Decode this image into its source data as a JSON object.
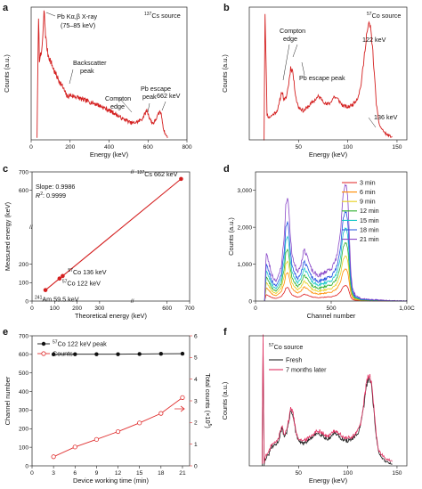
{
  "chart_data": [
    {
      "panel": "a",
      "type": "line",
      "inset_label": "137Cs source",
      "inset_sup": "137",
      "inset_rest": "Cs source",
      "xlabel": "Energy (keV)",
      "ylabel": "Counts (a.u.)",
      "xlim": [
        0,
        800
      ],
      "xticks": [
        0,
        200,
        400,
        600,
        800
      ],
      "color": "#d42020",
      "series": [
        {
          "x": [
            30,
            38,
            42,
            46,
            50,
            55,
            60,
            66,
            75,
            85,
            100,
            120,
            140,
            160,
            175,
            185,
            200,
            230,
            260,
            300,
            340,
            380,
            420,
            450,
            470,
            490,
            510,
            530,
            550,
            570,
            585,
            595,
            600,
            610,
            620,
            630,
            645,
            655,
            662,
            670,
            680,
            690,
            700
          ],
          "y": [
            0.02,
            0.96,
            0.6,
            0.66,
            0.62,
            0.7,
            0.78,
            0.99,
            0.78,
            0.66,
            0.6,
            0.52,
            0.46,
            0.41,
            0.36,
            0.33,
            0.34,
            0.33,
            0.31,
            0.29,
            0.27,
            0.24,
            0.21,
            0.18,
            0.16,
            0.15,
            0.13,
            0.13,
            0.14,
            0.16,
            0.2,
            0.23,
            0.2,
            0.16,
            0.13,
            0.13,
            0.17,
            0.2,
            0.22,
            0.18,
            0.08,
            0.04,
            0.02
          ]
        }
      ],
      "annotations": [
        {
          "line1": "Pb Kα,β X-ray",
          "line2": "(75–85 keV)"
        },
        {
          "line1": "Backscatter",
          "line2": "peak"
        },
        {
          "line1": "Compton",
          "line2": "edge"
        },
        {
          "line1": "Pb escape",
          "line2": "peak"
        },
        {
          "line1": "662 keV",
          "line2": ""
        }
      ]
    },
    {
      "panel": "b",
      "type": "line",
      "inset_label": "57Co source",
      "inset_sup": "57",
      "inset_rest": "Co source",
      "xlabel": "Energy (keV)",
      "ylabel": "Counts (a.u.)",
      "xlim": [
        0,
        160
      ],
      "xticks": [
        50,
        100,
        150
      ],
      "color": "#d42020",
      "series": [
        {
          "x": [
            15,
            16,
            17,
            18,
            19,
            20,
            22,
            25,
            28,
            30,
            32,
            33,
            34,
            35,
            36,
            38,
            40,
            42,
            44,
            46,
            48,
            50,
            52,
            55,
            58,
            62,
            66,
            70,
            74,
            78,
            82,
            86,
            90,
            95,
            100,
            105,
            110,
            113,
            116,
            119,
            121,
            122,
            123,
            125,
            127,
            129,
            131,
            133,
            136,
            138,
            140,
            145
          ],
          "y": [
            0.0,
            0.97,
            0.6,
            0.2,
            0.18,
            0.17,
            0.18,
            0.2,
            0.22,
            0.26,
            0.34,
            0.37,
            0.35,
            0.31,
            0.3,
            0.34,
            0.43,
            0.55,
            0.53,
            0.4,
            0.3,
            0.25,
            0.24,
            0.22,
            0.24,
            0.27,
            0.3,
            0.33,
            0.31,
            0.27,
            0.28,
            0.33,
            0.31,
            0.26,
            0.25,
            0.27,
            0.32,
            0.4,
            0.58,
            0.8,
            0.87,
            0.88,
            0.86,
            0.72,
            0.5,
            0.28,
            0.15,
            0.1,
            0.07,
            0.05,
            0.04,
            0.02
          ]
        }
      ],
      "annotations": [
        {
          "line1": "Compton",
          "line2": "edge"
        },
        {
          "line1": "Pb escape peak",
          "line2": ""
        },
        {
          "line1": "122 keV",
          "line2": ""
        },
        {
          "line1": "136 keV",
          "line2": ""
        }
      ]
    },
    {
      "panel": "c",
      "type": "scatter",
      "xlabel": "Theoretical energy (keV)",
      "ylabel": "Measured energy (keV)",
      "xlim": [
        0,
        700
      ],
      "ylim": [
        0,
        700
      ],
      "xticks": [
        0,
        100,
        200,
        300,
        600,
        700
      ],
      "yticks": [
        0,
        100,
        200,
        600,
        700
      ],
      "slope_text": "Slope: 0.9986",
      "r2_prefix": "R",
      "r2_sup": "2",
      "r2_rest": ": 0.9999",
      "color": "#d42020",
      "points": [
        {
          "x": 59.5,
          "y": 59.5,
          "sup": "241",
          "rest": "Am 59.5 keV"
        },
        {
          "x": 122,
          "y": 122,
          "sup": "57",
          "rest": "Co 122 keV"
        },
        {
          "x": 136,
          "y": 136,
          "sup": "57",
          "rest": "Co 136 keV"
        },
        {
          "x": 662,
          "y": 662,
          "sup": "137",
          "rest": "Cs 662 keV"
        }
      ]
    },
    {
      "panel": "d",
      "type": "line",
      "xlabel": "Channel number",
      "ylabel": "Counts (a.u.)",
      "xlim": [
        0,
        1000
      ],
      "ylim": [
        0,
        3500
      ],
      "xticks": [
        0,
        500
      ],
      "xtick_last": "1,00C",
      "yticks": [
        0,
        1000,
        2000,
        3000
      ],
      "ytick_labels": [
        "0",
        "1,000",
        "2,000",
        "3,000"
      ],
      "shape_x": [
        60,
        70,
        90,
        110,
        130,
        150,
        170,
        190,
        200,
        210,
        220,
        230,
        240,
        260,
        280,
        300,
        320,
        340,
        360,
        380,
        400,
        420,
        440,
        460,
        480,
        500,
        520,
        540,
        560,
        570,
        580,
        590,
        600,
        610,
        620,
        630,
        640,
        660,
        700,
        800,
        1000
      ],
      "shape_y": [
        0.0,
        0.42,
        0.32,
        0.22,
        0.18,
        0.2,
        0.3,
        0.55,
        0.82,
        0.9,
        0.8,
        0.55,
        0.42,
        0.3,
        0.26,
        0.32,
        0.44,
        0.4,
        0.3,
        0.25,
        0.23,
        0.22,
        0.23,
        0.25,
        0.27,
        0.28,
        0.32,
        0.4,
        0.58,
        0.75,
        0.92,
        0.98,
        1.0,
        0.88,
        0.55,
        0.25,
        0.12,
        0.05,
        0.02,
        0.01,
        0.0
      ],
      "series": [
        {
          "name": "3 min",
          "peak": 420,
          "color": "#e02020"
        },
        {
          "name": "6 min",
          "peak": 870,
          "color": "#ff8c00"
        },
        {
          "name": "9 min",
          "peak": 1220,
          "color": "#e8d020"
        },
        {
          "name": "12 min",
          "peak": 1580,
          "color": "#30b030"
        },
        {
          "name": "15 min",
          "peak": 1980,
          "color": "#18c8c8"
        },
        {
          "name": "18 min",
          "peak": 2420,
          "color": "#2050e0"
        },
        {
          "name": "21 min",
          "peak": 3150,
          "color": "#8a48c8"
        }
      ]
    },
    {
      "panel": "e",
      "type": "line",
      "xlabel": "Device working time (min)",
      "ylabel": "Channel number",
      "y2label_main": "Total counts (×10",
      "y2label_sup": "5",
      "y2label_end": ")",
      "xlim": [
        0,
        22
      ],
      "xticks": [
        0,
        3,
        6,
        9,
        12,
        15,
        18,
        21
      ],
      "ylim": [
        0,
        700
      ],
      "yticks": [
        0,
        100,
        200,
        300,
        400,
        500,
        600,
        700
      ],
      "y2lim": [
        0,
        6
      ],
      "y2ticks": [
        0,
        1,
        2,
        3,
        4,
        5,
        6
      ],
      "x": [
        3,
        6,
        9,
        12,
        15,
        18,
        21
      ],
      "series": [
        {
          "name": "57Co 122 keV peak",
          "sup": "57",
          "rest": "Co 122 keV peak",
          "axis": "left",
          "color": "#111111",
          "values": [
            600,
            601,
            601,
            601,
            602,
            603,
            604
          ]
        },
        {
          "name": "Counts",
          "sup": "",
          "rest": "Counts",
          "axis": "right",
          "color": "#e03030",
          "values": [
            0.42,
            0.87,
            1.22,
            1.58,
            1.98,
            2.42,
            3.15
          ]
        }
      ]
    },
    {
      "panel": "f",
      "type": "line",
      "inset_label": "57Co source",
      "inset_sup": "57",
      "inset_rest": "Co source",
      "xlabel": "Energy (keV)",
      "ylabel": "Counts (a.u.)",
      "xlim": [
        0,
        160
      ],
      "xticks": [
        50,
        100,
        150
      ],
      "series": [
        {
          "name": "Fresh",
          "color": "#222222",
          "offset": 0
        },
        {
          "name": "7 months later",
          "color": "#e03060",
          "offset": 0.02
        }
      ]
    }
  ]
}
